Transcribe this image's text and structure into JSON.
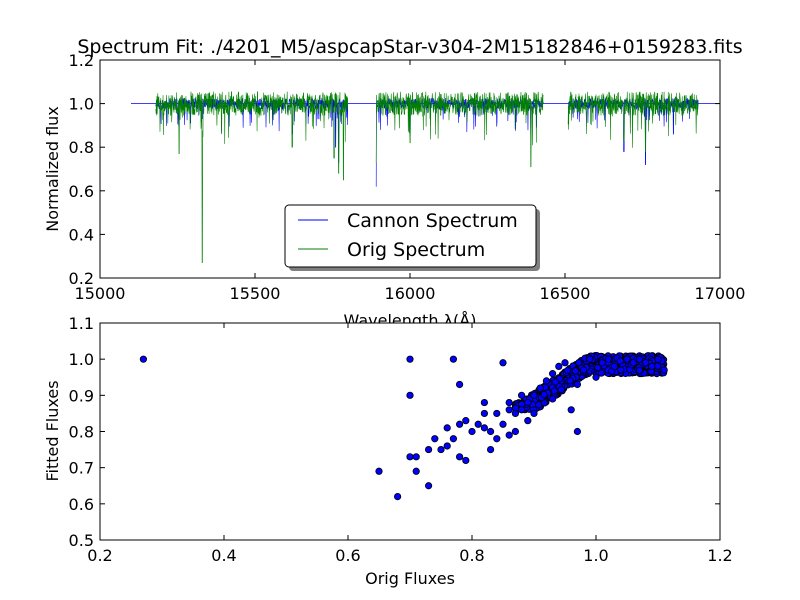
{
  "chart_data": [
    {
      "type": "line",
      "title": "Spectrum Fit: ./4201_M5/aspcapStar-v304-2M15182846+0159283.fits",
      "xlabel": "Wavelength λ(Å)",
      "ylabel": "Normalized flux",
      "xlim": [
        15000,
        17000
      ],
      "ylim": [
        0.2,
        1.2
      ],
      "xticks": [
        "15000",
        "15500",
        "16000",
        "16500",
        "17000"
      ],
      "yticks": [
        "0.2",
        "0.4",
        "0.6",
        "0.8",
        "1.0",
        "1.2"
      ],
      "legend_position": "lower center",
      "grid": false,
      "series": [
        {
          "name": "Cannon Spectrum",
          "color": "#0000ff",
          "continuum": [
            [
              15100,
              1.0
            ],
            [
              17000,
              1.0
            ]
          ],
          "segments": [
            [
              15180,
              15800
            ],
            [
              15890,
              16430
            ],
            [
              16510,
              16930
            ]
          ],
          "absorption_lines": [
            [
              15330,
              0.93
            ],
            [
              15620,
              0.86
            ],
            [
              15760,
              0.8
            ],
            [
              15770,
              0.73
            ],
            [
              15890,
              0.62
            ],
            [
              16000,
              0.85
            ],
            [
              16390,
              0.86
            ],
            [
              16690,
              0.78
            ],
            [
              16760,
              0.72
            ],
            [
              16850,
              0.86
            ]
          ]
        },
        {
          "name": "Orig Spectrum",
          "color": "#008000",
          "segments": [
            [
              15180,
              15800
            ],
            [
              15890,
              16430
            ],
            [
              16510,
              16930
            ]
          ],
          "absorption_lines": [
            [
              15255,
              0.77
            ],
            [
              15330,
              0.27
            ],
            [
              15620,
              0.8
            ],
            [
              15755,
              0.75
            ],
            [
              15770,
              0.68
            ],
            [
              15785,
              0.65
            ],
            [
              15890,
              0.73
            ],
            [
              16000,
              0.82
            ],
            [
              16390,
              0.71
            ],
            [
              16690,
              0.83
            ],
            [
              16760,
              0.78
            ]
          ]
        }
      ]
    },
    {
      "type": "scatter",
      "xlabel": "Orig Fluxes",
      "ylabel": "Fitted Fluxes",
      "xlim": [
        0.2,
        1.2
      ],
      "ylim": [
        0.5,
        1.1
      ],
      "xticks": [
        "0.2",
        "0.4",
        "0.6",
        "0.8",
        "1.0",
        "1.2"
      ],
      "yticks": [
        "0.5",
        "0.6",
        "0.7",
        "0.8",
        "0.9",
        "1.0",
        "1.1"
      ],
      "color": "#0000ff",
      "points": [
        [
          0.27,
          1.0
        ],
        [
          0.65,
          0.69
        ],
        [
          0.68,
          0.62
        ],
        [
          0.7,
          0.9
        ],
        [
          0.7,
          1.0
        ],
        [
          0.7,
          0.73
        ],
        [
          0.71,
          0.69
        ],
        [
          0.71,
          0.73
        ],
        [
          0.73,
          0.65
        ],
        [
          0.73,
          0.75
        ],
        [
          0.74,
          0.78
        ],
        [
          0.75,
          0.75
        ],
        [
          0.76,
          0.76
        ],
        [
          0.76,
          0.81
        ],
        [
          0.77,
          1.0
        ],
        [
          0.77,
          0.78
        ],
        [
          0.78,
          0.73
        ],
        [
          0.78,
          0.82
        ],
        [
          0.78,
          0.93
        ],
        [
          0.79,
          0.72
        ],
        [
          0.79,
          0.83
        ],
        [
          0.8,
          0.8
        ],
        [
          0.81,
          0.82
        ],
        [
          0.82,
          0.81
        ],
        [
          0.82,
          0.88
        ],
        [
          0.82,
          0.85
        ],
        [
          0.83,
          0.75
        ],
        [
          0.83,
          0.8
        ],
        [
          0.84,
          0.78
        ],
        [
          0.84,
          0.85
        ],
        [
          0.85,
          0.99
        ],
        [
          0.85,
          0.82
        ],
        [
          0.86,
          0.79
        ],
        [
          0.86,
          0.86
        ],
        [
          0.86,
          0.88
        ],
        [
          0.87,
          0.8
        ],
        [
          0.87,
          0.85
        ],
        [
          0.88,
          0.86
        ],
        [
          0.88,
          0.9
        ],
        [
          0.89,
          0.83
        ],
        [
          0.89,
          0.88
        ],
        [
          0.9,
          0.9
        ],
        [
          0.9,
          0.85
        ],
        [
          0.91,
          0.92
        ],
        [
          0.92,
          0.94
        ],
        [
          0.93,
          0.96
        ],
        [
          0.93,
          0.89
        ],
        [
          0.94,
          0.98
        ],
        [
          0.95,
          0.99
        ],
        [
          0.96,
          0.86
        ],
        [
          0.97,
          0.8
        ],
        [
          0.97,
          0.93
        ],
        [
          0.98,
          0.97
        ],
        [
          0.99,
          1.0
        ],
        [
          1.0,
          0.95
        ],
        [
          1.01,
          0.99
        ],
        [
          1.02,
          1.0
        ],
        [
          1.03,
          0.98
        ],
        [
          1.04,
          0.97
        ],
        [
          1.05,
          1.0
        ],
        [
          1.06,
          0.99
        ],
        [
          1.07,
          1.0
        ],
        [
          1.08,
          0.99
        ],
        [
          1.09,
          0.98
        ],
        [
          1.1,
          1.0
        ],
        [
          1.11,
          0.97
        ]
      ],
      "dense_region": {
        "x": [
          0.87,
          1.11
        ],
        "y": [
          0.86,
          1.01
        ]
      }
    }
  ]
}
